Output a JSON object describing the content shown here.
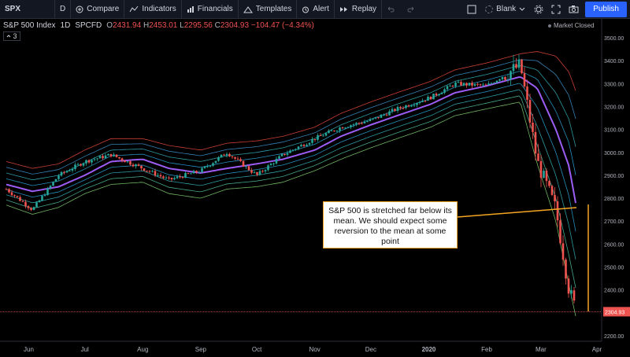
{
  "toolbar": {
    "symbol": "SPX",
    "interval": "D",
    "compare": "Compare",
    "indicators": "Indicators",
    "financials": "Financials",
    "templates": "Templates",
    "alert": "Alert",
    "replay": "Replay",
    "layout": "Blank",
    "publish": "Publish"
  },
  "legend": {
    "name": "S&P 500 Index",
    "interval": "1D",
    "source": "SPCFD",
    "o_label": "O",
    "o": "2431.94",
    "h_label": "H",
    "h": "2453.01",
    "l_label": "L",
    "l": "2295.56",
    "c_label": "C",
    "c": "2304.93",
    "change": "−104.47 (−4.34%)",
    "indicators_count": "3"
  },
  "market_status": "Market Closed",
  "price_axis": {
    "ticks": [
      "3500.00",
      "3400.00",
      "3300.00",
      "3200.00",
      "3100.00",
      "3000.00",
      "2900.00",
      "2800.00",
      "2700.00",
      "2600.00",
      "2500.00",
      "2400.00",
      "2300.00",
      "2200.00"
    ],
    "last_price": "2304.93"
  },
  "time_axis": {
    "ticks": [
      "Jun",
      "Jul",
      "Aug",
      "Sep",
      "Oct",
      "Nov",
      "Dec",
      "2020",
      "Feb",
      "Mar",
      "Apr"
    ]
  },
  "annotation": "S&P 500 is stretched far below its mean. We should expect some reversion to the mean at some point",
  "colors": {
    "up": "#26a69a",
    "down": "#ef5350",
    "mean": "#9c5df5",
    "band_inner": "#2ab3c7",
    "band_upper": "#e0463b",
    "band_lower": "#7bc86c",
    "annotation": "#f5a623",
    "price_line": "#ef5350"
  },
  "chart_data": {
    "type": "candlestick",
    "x": [
      "2019-05-20",
      "2019-06-03",
      "2019-06-17",
      "2019-07-01",
      "2019-07-15",
      "2019-08-01",
      "2019-08-15",
      "2019-09-01",
      "2019-09-15",
      "2019-10-01",
      "2019-10-15",
      "2019-11-01",
      "2019-11-15",
      "2019-12-01",
      "2019-12-15",
      "2020-01-02",
      "2020-01-15",
      "2020-02-01",
      "2020-02-19",
      "2020-02-28",
      "2020-03-09",
      "2020-03-16",
      "2020-03-20"
    ],
    "close": [
      2840,
      2750,
      2900,
      2960,
      2990,
      2930,
      2880,
      2920,
      3000,
      2900,
      2990,
      3060,
      3110,
      3140,
      3190,
      3240,
      3300,
      3290,
      3380,
      2960,
      2750,
      2400,
      2305
    ],
    "mean": [
      2860,
      2830,
      2850,
      2900,
      2960,
      2970,
      2930,
      2910,
      2930,
      2950,
      2970,
      3010,
      3070,
      3120,
      3160,
      3210,
      3260,
      3290,
      3330,
      3280,
      3100,
      2940,
      2760
    ],
    "upper": [
      2960,
      2930,
      2950,
      3010,
      3060,
      3060,
      3030,
      3010,
      3040,
      3050,
      3070,
      3110,
      3170,
      3220,
      3260,
      3310,
      3360,
      3390,
      3430,
      3440,
      3420,
      3350,
      3260
    ],
    "lower": [
      2770,
      2730,
      2760,
      2820,
      2860,
      2870,
      2820,
      2800,
      2840,
      2850,
      2870,
      2920,
      2970,
      3020,
      3060,
      3110,
      3160,
      3190,
      3220,
      2950,
      2700,
      2420,
      2270
    ],
    "last": 2304.93,
    "ylim": [
      2170,
      3550
    ]
  }
}
